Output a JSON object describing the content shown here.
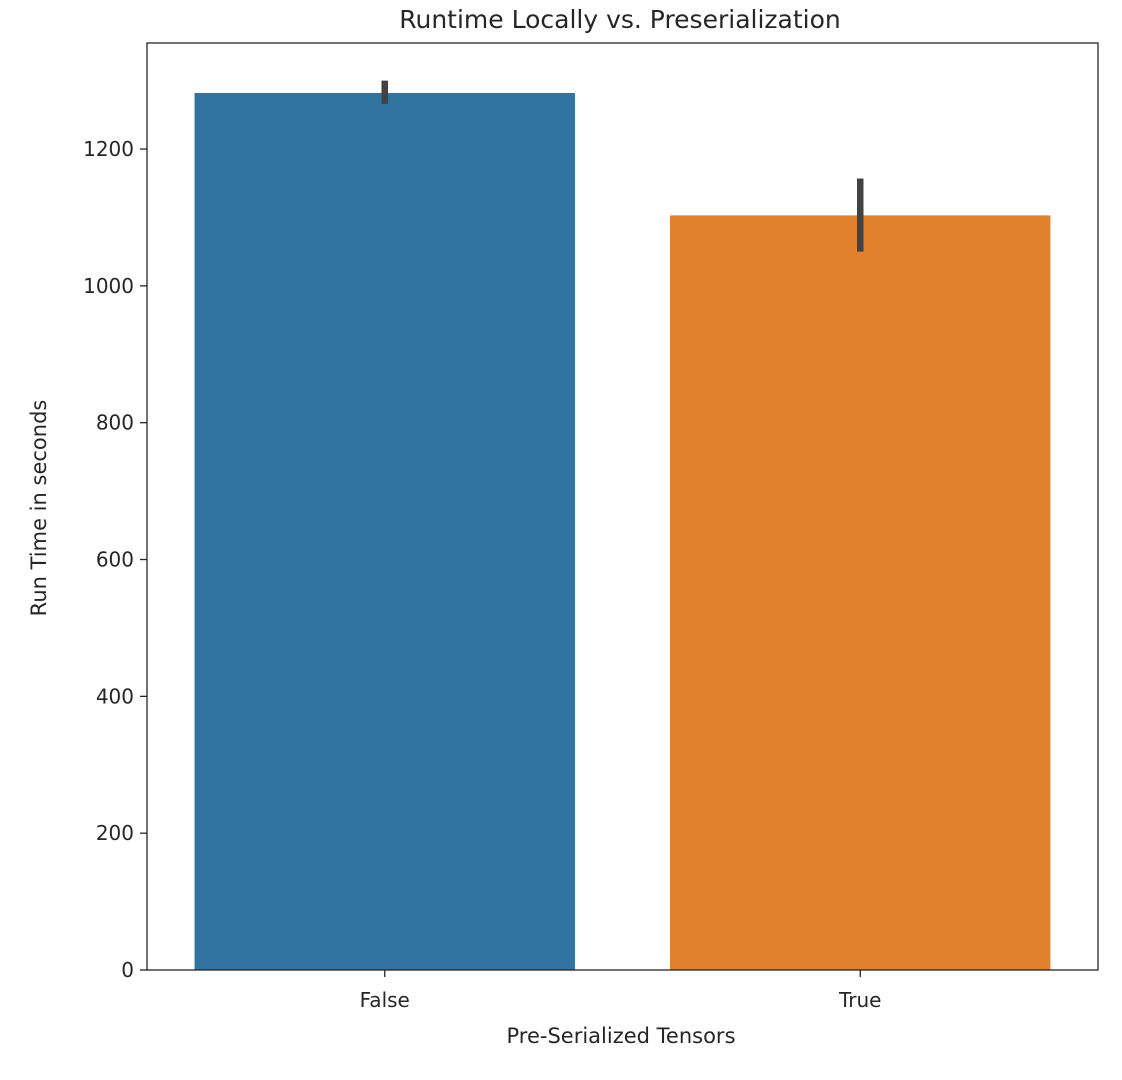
{
  "chart_data": {
    "type": "bar",
    "title": "Runtime Locally vs. Preserialization",
    "xlabel": "Pre-Serialized Tensors",
    "ylabel": "Run Time in seconds",
    "categories": [
      "False",
      "True"
    ],
    "values": [
      1282,
      1103
    ],
    "error_bars": [
      {
        "low": 1266,
        "high": 1300
      },
      {
        "low": 1050,
        "high": 1157
      }
    ],
    "colors": [
      "#3274a1",
      "#e1812c"
    ],
    "error_bar_color": "#424242",
    "ylim": [
      0,
      1355
    ],
    "yticks": [
      0,
      200,
      400,
      600,
      800,
      1000,
      1200
    ],
    "grid": false,
    "legend": "none"
  }
}
